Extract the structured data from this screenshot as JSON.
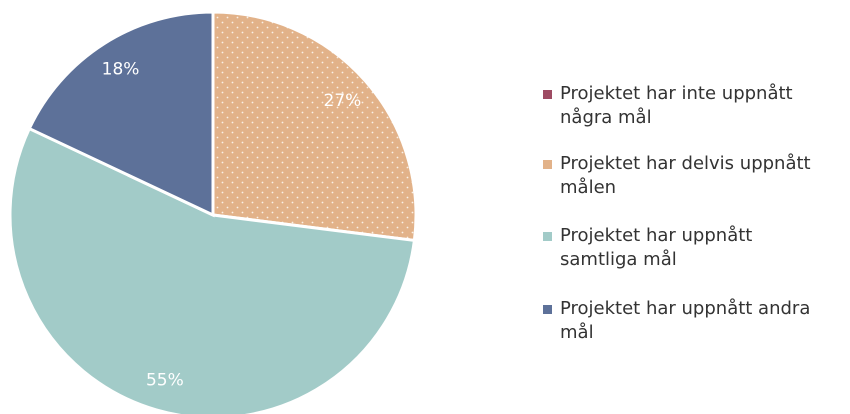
{
  "chart_data": {
    "type": "pie",
    "categories": [
      "Projektet har inte uppnått några mål",
      "Projektet har delvis uppnått målen",
      "Projektet har uppnått samtliga mål",
      "Projektet har uppnått andra mål"
    ],
    "values": [
      0,
      27,
      55,
      18
    ],
    "value_labels": [
      null,
      "27%",
      "55%",
      "18%"
    ],
    "colors": [
      "#9e4b63",
      "#e2b289",
      "#a2cbc8",
      "#5d7199"
    ]
  }
}
